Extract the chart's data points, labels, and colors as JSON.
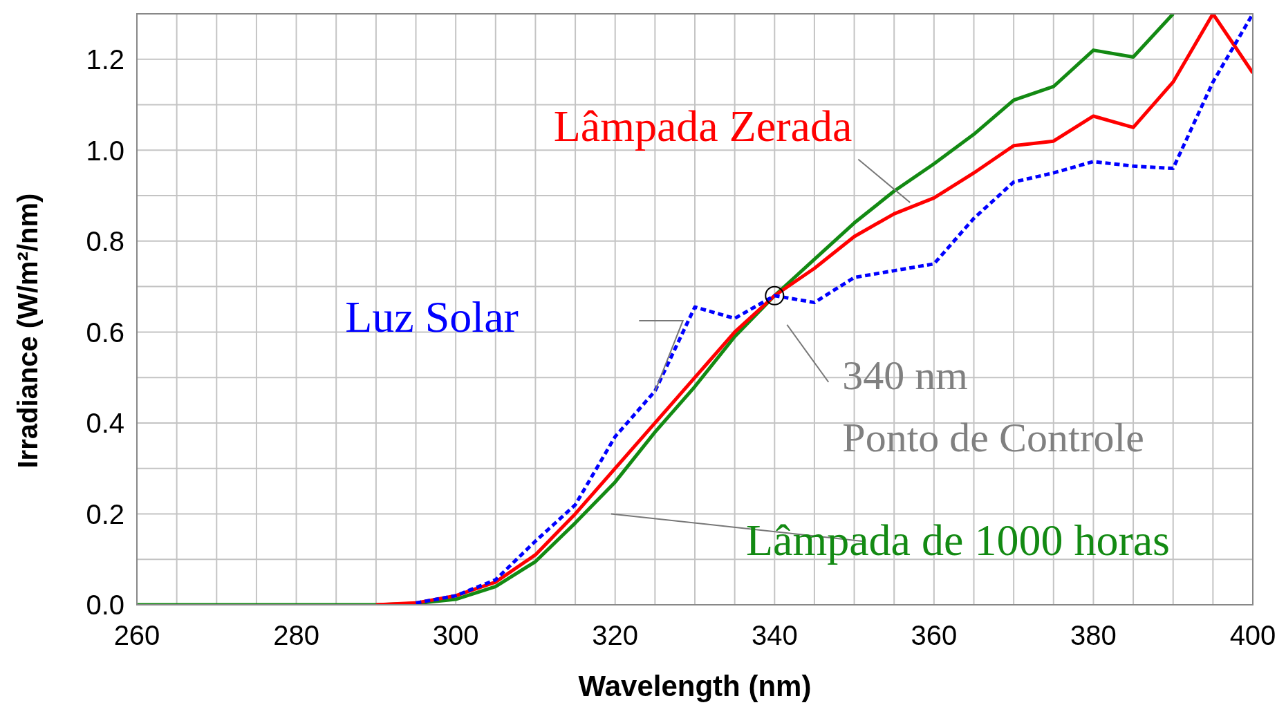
{
  "chart_data": {
    "type": "line",
    "xlabel": "Wavelength (nm)",
    "ylabel": "Irradiance (W/m²/nm)",
    "x": [
      260,
      265,
      270,
      275,
      280,
      285,
      290,
      295,
      300,
      305,
      310,
      315,
      320,
      325,
      330,
      335,
      340,
      345,
      350,
      355,
      360,
      365,
      370,
      375,
      380,
      385,
      390,
      395,
      400
    ],
    "series": [
      {
        "name": "Luz Solar",
        "color": "#0000ff",
        "line_style": "dashed",
        "values": [
          null,
          null,
          null,
          null,
          null,
          null,
          null,
          0.004,
          0.02,
          0.055,
          0.14,
          0.22,
          0.37,
          0.47,
          0.655,
          0.63,
          0.68,
          0.665,
          0.72,
          0.735,
          0.75,
          0.85,
          0.93,
          0.95,
          0.975,
          0.965,
          0.96,
          1.15,
          1.3
        ]
      },
      {
        "name": "Lâmpada Zerada",
        "color": "#ff0000",
        "line_style": "solid",
        "values": [
          null,
          null,
          null,
          null,
          null,
          null,
          0,
          0.004,
          0.02,
          0.05,
          0.11,
          0.2,
          0.3,
          0.4,
          0.5,
          0.6,
          0.68,
          0.74,
          0.81,
          0.86,
          0.895,
          0.95,
          1.01,
          1.02,
          1.075,
          1.05,
          1.15,
          1.3,
          1.17
        ]
      },
      {
        "name": "Lâmpada de 1000 horas",
        "color": "#138a13",
        "line_style": "solid",
        "values": [
          0,
          0,
          0,
          0,
          0,
          0,
          0,
          0.003,
          0.012,
          0.04,
          0.095,
          0.18,
          0.27,
          0.38,
          0.48,
          0.59,
          0.68,
          0.76,
          0.84,
          0.91,
          0.97,
          1.035,
          1.11,
          1.14,
          1.22,
          1.205,
          1.3,
          null,
          null
        ]
      }
    ],
    "annotations": [
      {
        "text": "340 nm",
        "x": 340,
        "y": 0.68
      },
      "Ponto de Controle"
    ],
    "xlim": [
      260,
      400
    ],
    "xticks": [
      260,
      {
        "value": 265,
        "label": null
      },
      {
        "value": 270,
        "label": null
      },
      {
        "value": 275,
        "label": null
      },
      280,
      {
        "value": 285,
        "label": null
      },
      {
        "value": 290,
        "label": null
      },
      {
        "value": 295,
        "label": null
      },
      300,
      {
        "value": 305,
        "label": null
      },
      {
        "value": 310,
        "label": null
      },
      {
        "value": 315,
        "label": null
      },
      320,
      {
        "value": 325,
        "label": null
      },
      {
        "value": 330,
        "label": null
      },
      {
        "value": 335,
        "label": null
      },
      340,
      {
        "value": 345,
        "label": null
      },
      {
        "value": 350,
        "label": null
      },
      {
        "value": 355,
        "label": null
      },
      360,
      {
        "value": 365,
        "label": null
      },
      {
        "value": 370,
        "label": null
      },
      {
        "value": 375,
        "label": null
      },
      380,
      {
        "value": 385,
        "label": null
      },
      {
        "value": 390,
        "label": null
      },
      {
        "value": 395,
        "label": null
      },
      400
    ],
    "ylim": [
      0,
      1.3
    ],
    "yticks": [
      {
        "value": 0,
        "label": "0.0"
      },
      {
        "value": 0.1,
        "label": null
      },
      {
        "value": 0.2,
        "label": "0.2"
      },
      {
        "value": 0.3,
        "label": null
      },
      {
        "value": 0.4,
        "label": "0.4"
      },
      {
        "value": 0.5,
        "label": null
      },
      {
        "value": 0.6,
        "label": "0.6"
      },
      {
        "value": 0.7,
        "label": null
      },
      {
        "value": 0.8,
        "label": "0.8"
      },
      {
        "value": 0.9,
        "label": null
      },
      {
        "value": 1.0,
        "label": "1.0"
      },
      {
        "value": 1.1,
        "label": null
      },
      {
        "value": 1.2,
        "label": "1.2"
      },
      {
        "value": 1.3,
        "label": null
      }
    ],
    "grid": true,
    "marker": "none"
  }
}
